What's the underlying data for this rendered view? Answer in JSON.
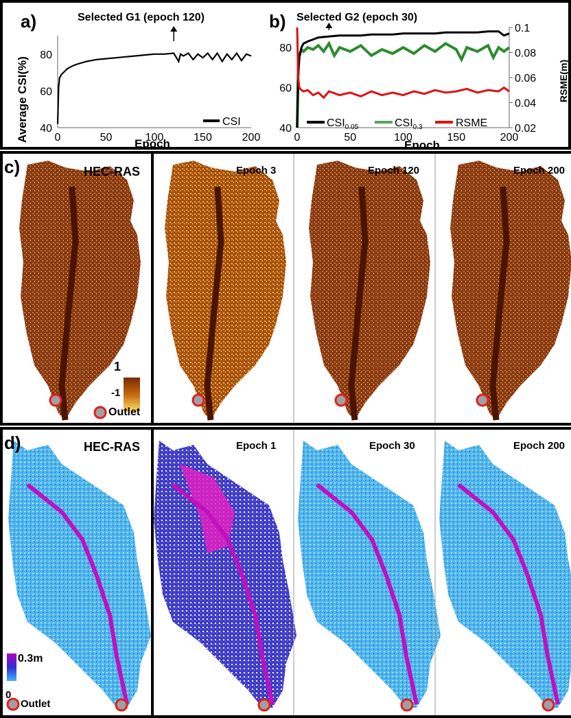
{
  "panel_a": {
    "letter": "a)",
    "annotation": "Selected G1 (epoch 120)",
    "ylabel": "Average CSI(%)",
    "xlabel": "Epoch",
    "legend": [
      "CSI"
    ]
  },
  "panel_b": {
    "letter": "b)",
    "annotation": "Selected G2 (epoch 30)",
    "xlabel": "Epoch",
    "y2label": "RSME(m)",
    "legend": [
      "CSI0.05",
      "CSI0.3",
      "RSME"
    ],
    "legend_base": "CSI",
    "legend_sub1": "0.05",
    "legend_sub2": "0.3",
    "legend_rsme": "RSME"
  },
  "panel_c": {
    "letter": "c)",
    "titles": [
      "HEC-RAS",
      "Epoch 3",
      "Epoch 120",
      "Epoch 200"
    ],
    "colorbar": {
      "max": "1",
      "min": "-1"
    },
    "outlet": "Outlet"
  },
  "panel_d": {
    "letter": "d)",
    "titles": [
      "HEC-RAS",
      "Epoch 1",
      "Epoch 30",
      "Epoch 200"
    ],
    "colorbar": {
      "max": "0.3m",
      "min": "0"
    },
    "outlet": "Outlet"
  },
  "colors": {
    "csi": "#000000",
    "csi03": "#2e8b2e",
    "rsme": "#e01010",
    "outlet": "#e02020"
  },
  "chart_data": [
    {
      "type": "line",
      "title": "Selected G1 (epoch 120)",
      "xlabel": "Epoch",
      "ylabel": "Average CSI(%)",
      "xlim": [
        0,
        200
      ],
      "ylim": [
        40,
        90
      ],
      "xticks": [
        "0",
        "50",
        "100",
        "150",
        "200"
      ],
      "yticks": [
        "40",
        "60",
        "80"
      ],
      "series": [
        {
          "name": "CSI",
          "x": [
            0,
            1,
            2,
            4,
            6,
            10,
            15,
            20,
            30,
            40,
            50,
            60,
            70,
            80,
            90,
            100,
            110,
            120,
            125,
            127,
            130,
            135,
            140,
            145,
            150,
            155,
            160,
            165,
            170,
            175,
            180,
            185,
            190,
            195,
            200
          ],
          "y": [
            42,
            62,
            67,
            69,
            70,
            72,
            73.5,
            74.5,
            76,
            77,
            77.5,
            78,
            78.5,
            79,
            79.5,
            80,
            80,
            80.5,
            76,
            80,
            79,
            80.5,
            77,
            80,
            78,
            80.5,
            77,
            80.5,
            76,
            80,
            77,
            80.5,
            76.5,
            80,
            79
          ]
        }
      ],
      "annotations": [
        {
          "text": "Selected G1 (epoch 120)",
          "x": 120
        }
      ]
    },
    {
      "type": "line",
      "title": "Selected G2 (epoch 30)",
      "xlabel": "Epoch",
      "ylabel": "",
      "y2label": "RSME(m)",
      "xlim": [
        0,
        200
      ],
      "ylim": [
        40,
        90
      ],
      "y2lim": [
        0.02,
        0.1
      ],
      "xticks": [
        "0",
        "50",
        "100",
        "150",
        "200"
      ],
      "yticks": [
        "40",
        "60",
        "80"
      ],
      "y2ticks": [
        "0.02",
        "0.04",
        "0.06",
        "0.08",
        "0.1"
      ],
      "series": [
        {
          "name": "CSI0.05",
          "axis": "left",
          "x": [
            0,
            1,
            2,
            4,
            6,
            10,
            15,
            20,
            30,
            40,
            50,
            60,
            70,
            80,
            90,
            100,
            110,
            120,
            130,
            140,
            150,
            160,
            170,
            180,
            190,
            195,
            200
          ],
          "y": [
            40,
            65,
            75,
            80,
            82,
            83,
            84,
            85,
            85.5,
            86,
            86,
            86,
            86.5,
            86.5,
            86.5,
            87,
            87,
            87,
            87,
            87.5,
            87.5,
            87.5,
            87.5,
            88,
            88,
            86,
            87
          ]
        },
        {
          "name": "CSI0.3",
          "axis": "left",
          "x": [
            0,
            1,
            2,
            4,
            6,
            10,
            15,
            20,
            25,
            30,
            35,
            40,
            50,
            60,
            70,
            80,
            90,
            100,
            110,
            120,
            130,
            140,
            150,
            155,
            160,
            170,
            180,
            185,
            190,
            195,
            200
          ],
          "y": [
            40,
            70,
            76,
            79,
            78,
            80,
            79,
            81,
            78,
            82,
            76,
            80,
            78,
            81,
            76,
            79,
            77,
            80,
            77,
            81,
            78,
            82,
            79,
            74,
            80,
            78,
            81,
            75,
            80,
            78,
            80
          ]
        },
        {
          "name": "RSME",
          "axis": "right",
          "x": [
            0,
            1,
            2,
            4,
            6,
            10,
            15,
            20,
            25,
            30,
            40,
            50,
            60,
            70,
            80,
            90,
            100,
            110,
            120,
            130,
            140,
            150,
            160,
            170,
            180,
            190,
            195,
            200
          ],
          "y": [
            0.1,
            0.06,
            0.052,
            0.05,
            0.049,
            0.05,
            0.046,
            0.048,
            0.044,
            0.049,
            0.046,
            0.048,
            0.045,
            0.049,
            0.046,
            0.048,
            0.046,
            0.049,
            0.047,
            0.05,
            0.048,
            0.049,
            0.051,
            0.048,
            0.05,
            0.049,
            0.052,
            0.049
          ]
        }
      ],
      "annotations": [
        {
          "text": "Selected G2 (epoch 30)",
          "x": 30
        }
      ]
    }
  ]
}
